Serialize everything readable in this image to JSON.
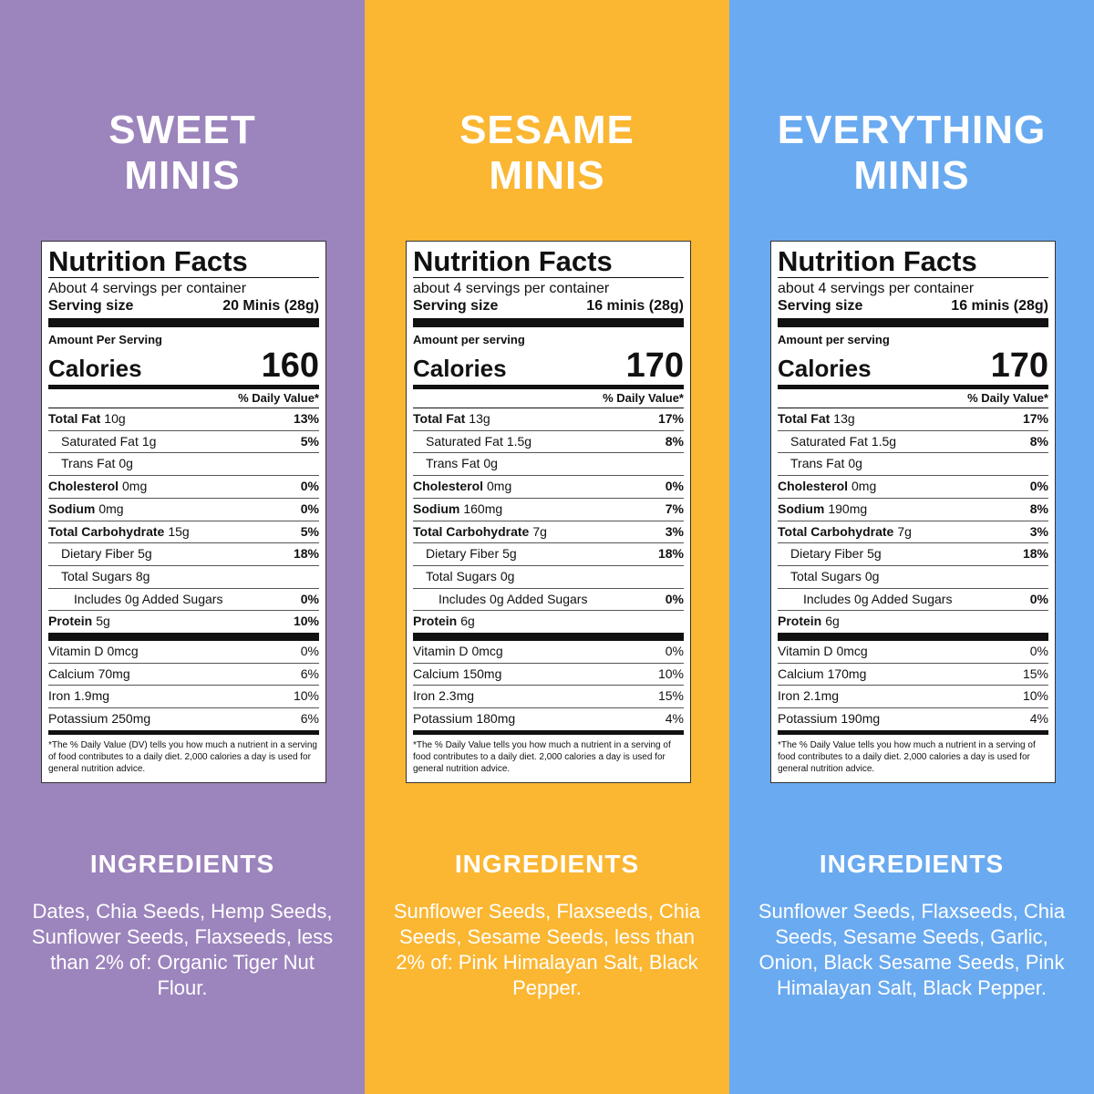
{
  "panels": [
    {
      "title": [
        "SWEET",
        "MINIS"
      ],
      "color": "#9c84bd",
      "label": {
        "heading": "Nutrition Facts",
        "servings": "About 4 servings per container",
        "serving_size_label": "Serving size",
        "serving_size": "20 Minis (28g)",
        "amount_per_serving": "Amount Per Serving",
        "calories_label": "Calories",
        "calories": 160,
        "dv_header": "% Daily Value*",
        "rows": [
          {
            "name": "Total Fat",
            "amount": "10g",
            "dv": "13%",
            "bold": true,
            "indent": 0
          },
          {
            "name": "Saturated Fat",
            "amount": "1g",
            "dv": "5%",
            "bold": false,
            "indent": 1
          },
          {
            "name": "Trans Fat",
            "amount": "0g",
            "bold": false,
            "indent": 1
          },
          {
            "name": "Cholesterol",
            "amount": "0mg",
            "dv": "0%",
            "bold": true,
            "indent": 0
          },
          {
            "name": "Sodium",
            "amount": "0mg",
            "dv": "0%",
            "bold": true,
            "indent": 0
          },
          {
            "name": "Total Carbohydrate",
            "amount": "15g",
            "dv": "5%",
            "bold": true,
            "indent": 0
          },
          {
            "name": "Dietary Fiber",
            "amount": "5g",
            "dv": "18%",
            "bold": false,
            "indent": 1
          },
          {
            "name": "Total Sugars",
            "amount": "8g",
            "bold": false,
            "indent": 1
          },
          {
            "name": "Includes 0g Added Sugars",
            "dv": "0%",
            "bold": false,
            "indent": 2
          },
          {
            "name": "Protein",
            "amount": "5g",
            "dv": "10%",
            "bold": true,
            "indent": 0
          }
        ],
        "vitamins": [
          {
            "name": "Vitamin D",
            "amount": "0mcg",
            "dv": "0%"
          },
          {
            "name": "Calcium",
            "amount": "70mg",
            "dv": "6%"
          },
          {
            "name": "Iron",
            "amount": "1.9mg",
            "dv": "10%"
          },
          {
            "name": "Potassium",
            "amount": "250mg",
            "dv": "6%"
          }
        ],
        "footnote": "*The % Daily Value (DV) tells you how much a nutrient in a serving of food contributes to a daily diet. 2,000 calories a day is used for general nutrition advice."
      },
      "ingredients_heading": "INGREDIENTS",
      "ingredients": "Dates, Chia Seeds, Hemp Seeds, Sunflower Seeds, Flaxseeds, less than 2% of: Organic Tiger Nut Flour."
    },
    {
      "title": [
        "SESAME",
        "MINIS"
      ],
      "color": "#fbb632",
      "label": {
        "heading": "Nutrition Facts",
        "servings": "about 4 servings per container",
        "serving_size_label": "Serving size",
        "serving_size": "16 minis (28g)",
        "amount_per_serving": "Amount per serving",
        "calories_label": "Calories",
        "calories": 170,
        "dv_header": "% Daily Value*",
        "rows": [
          {
            "name": "Total Fat",
            "amount": "13g",
            "dv": "17%",
            "bold": true,
            "indent": 0
          },
          {
            "name": "Saturated Fat",
            "amount": "1.5g",
            "dv": "8%",
            "bold": false,
            "indent": 1
          },
          {
            "name": "Trans Fat",
            "amount": "0g",
            "bold": false,
            "indent": 1
          },
          {
            "name": "Cholesterol",
            "amount": "0mg",
            "dv": "0%",
            "bold": true,
            "indent": 0
          },
          {
            "name": "Sodium",
            "amount": "160mg",
            "dv": "7%",
            "bold": true,
            "indent": 0
          },
          {
            "name": "Total Carbohydrate",
            "amount": "7g",
            "dv": "3%",
            "bold": true,
            "indent": 0
          },
          {
            "name": "Dietary Fiber",
            "amount": "5g",
            "dv": "18%",
            "bold": false,
            "indent": 1
          },
          {
            "name": "Total Sugars",
            "amount": "0g",
            "bold": false,
            "indent": 1
          },
          {
            "name": "Includes 0g Added Sugars",
            "dv": "0%",
            "bold": false,
            "indent": 2
          },
          {
            "name": "Protein",
            "amount": "6g",
            "bold": true,
            "indent": 0
          }
        ],
        "vitamins": [
          {
            "name": "Vitamin D",
            "amount": "0mcg",
            "dv": "0%"
          },
          {
            "name": "Calcium",
            "amount": "150mg",
            "dv": "10%"
          },
          {
            "name": "Iron",
            "amount": "2.3mg",
            "dv": "15%"
          },
          {
            "name": "Potassium",
            "amount": "180mg",
            "dv": "4%"
          }
        ],
        "footnote": "*The % Daily Value tells you how much a nutrient in a serving of food contributes to a daily diet. 2,000 calories a day is used for general nutrition advice."
      },
      "ingredients_heading": "INGREDIENTS",
      "ingredients": "Sunflower Seeds, Flaxseeds, Chia Seeds, Sesame Seeds, less than 2% of: Pink Himalayan Salt, Black Pepper."
    },
    {
      "title": [
        "EVERYTHING",
        "MINIS"
      ],
      "color": "#6aaaf0",
      "label": {
        "heading": "Nutrition Facts",
        "servings": "about 4 servings per container",
        "serving_size_label": "Serving size",
        "serving_size": "16 minis (28g)",
        "amount_per_serving": "Amount per serving",
        "calories_label": "Calories",
        "calories": 170,
        "dv_header": "% Daily Value*",
        "rows": [
          {
            "name": "Total Fat",
            "amount": "13g",
            "dv": "17%",
            "bold": true,
            "indent": 0
          },
          {
            "name": "Saturated Fat",
            "amount": "1.5g",
            "dv": "8%",
            "bold": false,
            "indent": 1
          },
          {
            "name": "Trans Fat",
            "amount": "0g",
            "bold": false,
            "indent": 1
          },
          {
            "name": "Cholesterol",
            "amount": "0mg",
            "dv": "0%",
            "bold": true,
            "indent": 0
          },
          {
            "name": "Sodium",
            "amount": "190mg",
            "dv": "8%",
            "bold": true,
            "indent": 0
          },
          {
            "name": "Total Carbohydrate",
            "amount": "7g",
            "dv": "3%",
            "bold": true,
            "indent": 0
          },
          {
            "name": "Dietary Fiber",
            "amount": "5g",
            "dv": "18%",
            "bold": false,
            "indent": 1
          },
          {
            "name": "Total Sugars",
            "amount": "0g",
            "bold": false,
            "indent": 1
          },
          {
            "name": "Includes 0g Added Sugars",
            "dv": "0%",
            "bold": false,
            "indent": 2
          },
          {
            "name": "Protein",
            "amount": "6g",
            "bold": true,
            "indent": 0
          }
        ],
        "vitamins": [
          {
            "name": "Vitamin D",
            "amount": "0mcg",
            "dv": "0%"
          },
          {
            "name": "Calcium",
            "amount": "170mg",
            "dv": "15%"
          },
          {
            "name": "Iron",
            "amount": "2.1mg",
            "dv": "10%"
          },
          {
            "name": "Potassium",
            "amount": "190mg",
            "dv": "4%"
          }
        ],
        "footnote": "*The % Daily Value tells you how much a nutrient in a serving of food contributes to a daily diet. 2,000 calories a day is used for general nutrition advice."
      },
      "ingredients_heading": "INGREDIENTS",
      "ingredients": "Sunflower Seeds, Flaxseeds, Chia Seeds, Sesame Seeds, Garlic, Onion, Black Sesame Seeds, Pink Himalayan Salt, Black Pepper."
    }
  ]
}
